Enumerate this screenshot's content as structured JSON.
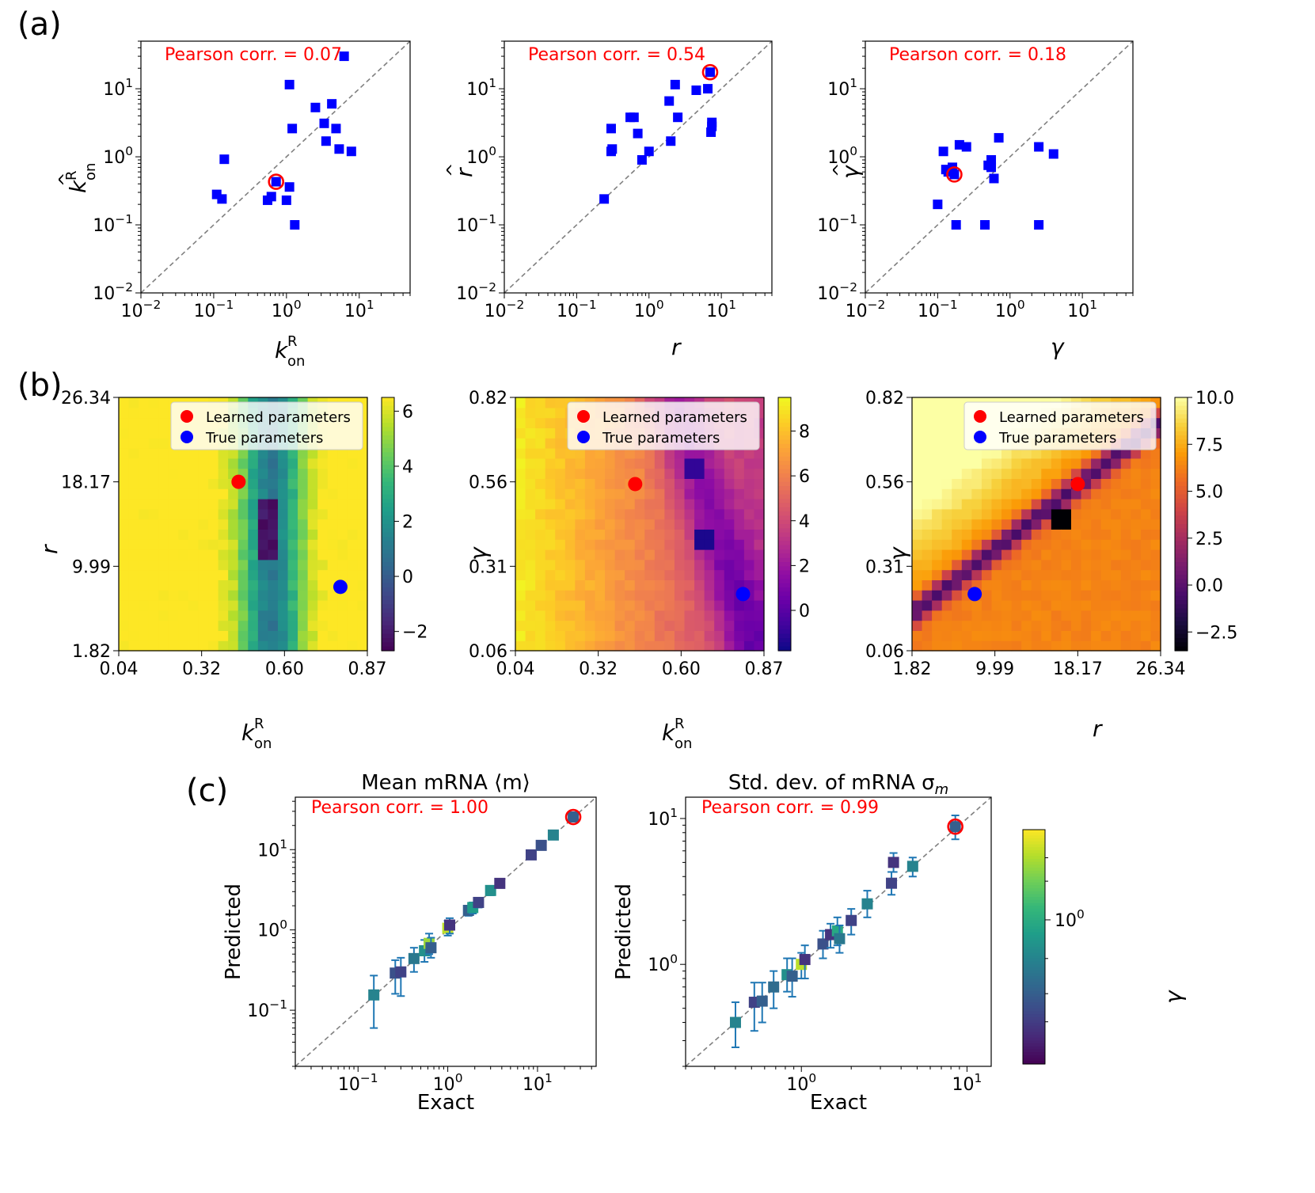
{
  "panel_labels": {
    "a": "(a)",
    "b": "(b)",
    "c": "(c)"
  },
  "colors": {
    "marker": "#0000ff",
    "highlight": "#ff0000",
    "annotation": "#ff0000",
    "diagonal": "#808080",
    "errorbar": "#1f77b4"
  },
  "legend": {
    "learned": "Learned parameters",
    "true": "True parameters"
  },
  "chart_data": [
    {
      "id": "a1",
      "type": "scatter",
      "panel": "(a)",
      "annotation": "Pearson corr. = 0.07",
      "xlabel": "k_on^R",
      "ylabel": "k̂_on^R",
      "xscale": "log",
      "yscale": "log",
      "xlim": [
        0.01,
        50
      ],
      "ylim": [
        0.01,
        50
      ],
      "xticks": [
        "10^-2",
        "10^-1",
        "10^0",
        "10^1"
      ],
      "yticks": [
        "10^-2",
        "10^-1",
        "10^0",
        "10^1"
      ],
      "marker_color": "#0000ff",
      "points": [
        [
          0.11,
          0.28
        ],
        [
          0.13,
          0.24
        ],
        [
          0.14,
          0.92
        ],
        [
          0.55,
          0.23
        ],
        [
          0.62,
          0.26
        ],
        [
          0.72,
          0.43
        ],
        [
          1.0,
          0.23
        ],
        [
          1.1,
          0.36
        ],
        [
          1.3,
          0.1
        ],
        [
          1.1,
          11.5
        ],
        [
          1.2,
          2.6
        ],
        [
          2.5,
          5.3
        ],
        [
          3.3,
          3.1
        ],
        [
          3.5,
          1.7
        ],
        [
          4.2,
          6.0
        ],
        [
          4.8,
          2.6
        ],
        [
          5.3,
          1.3
        ],
        [
          6.2,
          30.0
        ],
        [
          7.8,
          1.2
        ]
      ],
      "highlight": [
        0.72,
        0.43
      ],
      "diagonal": true
    },
    {
      "id": "a2",
      "type": "scatter",
      "panel": "(a)",
      "annotation": "Pearson corr. = 0.54",
      "xlabel": "r",
      "ylabel": "r̂",
      "xscale": "log",
      "yscale": "log",
      "xlim": [
        0.01,
        50
      ],
      "ylim": [
        0.01,
        50
      ],
      "xticks": [
        "10^-2",
        "10^-1",
        "10^0",
        "10^1"
      ],
      "yticks": [
        "10^-2",
        "10^-1",
        "10^0",
        "10^1"
      ],
      "marker_color": "#0000ff",
      "points": [
        [
          0.24,
          0.24
        ],
        [
          0.3,
          2.6
        ],
        [
          0.3,
          1.2
        ],
        [
          0.31,
          1.3
        ],
        [
          0.55,
          3.8
        ],
        [
          0.62,
          3.8
        ],
        [
          0.7,
          2.2
        ],
        [
          0.8,
          0.9
        ],
        [
          1.0,
          1.2
        ],
        [
          1.9,
          6.6
        ],
        [
          2.0,
          1.7
        ],
        [
          2.3,
          11.5
        ],
        [
          2.5,
          3.8
        ],
        [
          4.5,
          9.5
        ],
        [
          6.5,
          10.0
        ],
        [
          7.0,
          17.5
        ],
        [
          7.2,
          2.3
        ],
        [
          7.4,
          3.2
        ],
        [
          7.4,
          2.8
        ]
      ],
      "highlight": [
        7.0,
        17.5
      ],
      "diagonal": true
    },
    {
      "id": "a3",
      "type": "scatter",
      "panel": "(a)",
      "annotation": "Pearson corr. = 0.18",
      "xlabel": "γ",
      "ylabel": "γ̂",
      "xscale": "log",
      "yscale": "log",
      "xlim": [
        0.01,
        50
      ],
      "ylim": [
        0.01,
        50
      ],
      "xticks": [
        "10^-2",
        "10^-1",
        "10^0",
        "10^1"
      ],
      "yticks": [
        "10^-2",
        "10^-1",
        "10^0",
        "10^1"
      ],
      "marker_color": "#0000ff",
      "points": [
        [
          0.1,
          0.2
        ],
        [
          0.12,
          1.2
        ],
        [
          0.13,
          0.65
        ],
        [
          0.14,
          0.6
        ],
        [
          0.16,
          0.7
        ],
        [
          0.17,
          0.55
        ],
        [
          0.18,
          0.1
        ],
        [
          0.2,
          1.5
        ],
        [
          0.25,
          1.4
        ],
        [
          0.45,
          0.1
        ],
        [
          0.5,
          0.75
        ],
        [
          0.55,
          0.7
        ],
        [
          0.55,
          0.9
        ],
        [
          0.6,
          0.48
        ],
        [
          0.7,
          1.9
        ],
        [
          2.5,
          1.4
        ],
        [
          2.5,
          0.1
        ],
        [
          4.0,
          1.1
        ]
      ],
      "highlight": [
        0.17,
        0.55
      ],
      "diagonal": true
    },
    {
      "id": "b1",
      "type": "heatmap",
      "panel": "(b)",
      "xlabel": "k_on^R",
      "ylabel": "r",
      "xticks": [
        "0.04",
        "0.32",
        "0.60",
        "0.87"
      ],
      "yticks": [
        "1.82",
        "9.99",
        "18.17",
        "26.34"
      ],
      "xrange": [
        0.04,
        0.87
      ],
      "yrange": [
        1.82,
        26.34
      ],
      "colormap": "viridis",
      "clim": [
        -2.7,
        6.5
      ],
      "colorbar_ticks": [
        "6",
        "4",
        "2",
        "0",
        "−2"
      ],
      "colorbar_values": [
        6,
        4,
        2,
        0,
        -2
      ],
      "valley": {
        "type": "column",
        "xcenter": 0.55,
        "width": 0.1,
        "min_at": [
          0.55,
          14.0
        ]
      },
      "learned": [
        0.44,
        18.17
      ],
      "true": [
        0.78,
        8.0
      ]
    },
    {
      "id": "b2",
      "type": "heatmap",
      "panel": "(b)",
      "xlabel": "k_on^R",
      "ylabel": "γ",
      "xticks": [
        "0.04",
        "0.32",
        "0.60",
        "0.87"
      ],
      "yticks": [
        "0.06",
        "0.31",
        "0.56",
        "0.82"
      ],
      "xrange": [
        0.04,
        0.87
      ],
      "yrange": [
        0.06,
        0.82
      ],
      "colormap": "plasma",
      "clim": [
        -1.8,
        9.5
      ],
      "colorbar_ticks": [
        "8",
        "6",
        "4",
        "2",
        "0"
      ],
      "colorbar_values": [
        8,
        6,
        4,
        2,
        0
      ],
      "valley": {
        "type": "curve",
        "from": [
          0.57,
          0.82
        ],
        "to": [
          0.82,
          0.2
        ],
        "min_at": [
          0.68,
          0.4
        ]
      },
      "learned": [
        0.44,
        0.56
      ],
      "true": [
        0.8,
        0.23
      ]
    },
    {
      "id": "b3",
      "type": "heatmap",
      "panel": "(b)",
      "xlabel": "r",
      "ylabel": "γ",
      "xticks": [
        "1.82",
        "9.99",
        "18.17",
        "26.34"
      ],
      "yticks": [
        "0.06",
        "0.31",
        "0.56",
        "0.82"
      ],
      "xrange": [
        1.82,
        26.34
      ],
      "yrange": [
        0.06,
        0.82
      ],
      "colormap": "inferno",
      "clim": [
        -3.5,
        10.0
      ],
      "colorbar_ticks": [
        "10.0",
        "7.5",
        "5.0",
        "2.5",
        "0.0",
        "−2.5"
      ],
      "colorbar_values": [
        10.0,
        7.5,
        5.0,
        2.5,
        0.0,
        -2.5
      ],
      "valley": {
        "type": "line",
        "from": [
          1.82,
          0.17
        ],
        "to": [
          26.34,
          0.75
        ],
        "min_at": [
          16.5,
          0.46
        ]
      },
      "learned": [
        18.17,
        0.56
      ],
      "true": [
        8.0,
        0.23
      ]
    },
    {
      "id": "c1",
      "type": "scatter",
      "panel": "(c)",
      "title": "Mean mRNA ⟨m⟩",
      "annotation": "Pearson corr. = 1.00",
      "xlabel": "Exact",
      "ylabel": "Predicted",
      "xscale": "log",
      "yscale": "log",
      "xlim": [
        0.02,
        45
      ],
      "ylim": [
        0.02,
        45
      ],
      "xticks": [
        "10^-1",
        "10^0",
        "10^1"
      ],
      "yticks": [
        "10^-1",
        "10^0",
        "10^1"
      ],
      "colorbar_label": "γ",
      "colorbar_tick": "10^0",
      "points": [
        {
          "x": 0.15,
          "y": 0.155,
          "lo": 0.06,
          "hi": 0.27,
          "c": 0.45
        },
        {
          "x": 0.26,
          "y": 0.29,
          "lo": 0.16,
          "hi": 0.42,
          "c": 0.25
        },
        {
          "x": 0.3,
          "y": 0.3,
          "lo": 0.15,
          "hi": 0.45,
          "c": 0.2
        },
        {
          "x": 0.42,
          "y": 0.44,
          "lo": 0.3,
          "hi": 0.6,
          "c": 0.4
        },
        {
          "x": 0.55,
          "y": 0.55,
          "lo": 0.4,
          "hi": 0.75,
          "c": 0.5
        },
        {
          "x": 0.62,
          "y": 0.68,
          "lo": 0.5,
          "hi": 0.9,
          "c": 0.85
        },
        {
          "x": 0.65,
          "y": 0.6,
          "lo": 0.45,
          "hi": 0.8,
          "c": 0.3
        },
        {
          "x": 1.0,
          "y": 1.05,
          "lo": 0.85,
          "hi": 1.3,
          "c": 0.9
        },
        {
          "x": 1.05,
          "y": 1.15,
          "lo": 0.9,
          "hi": 1.4,
          "c": 0.15
        },
        {
          "x": 1.7,
          "y": 1.75,
          "lo": 1.5,
          "hi": 2.0,
          "c": 0.3
        },
        {
          "x": 1.9,
          "y": 1.9,
          "lo": 1.6,
          "hi": 2.2,
          "c": 0.55
        },
        {
          "x": 2.2,
          "y": 2.2,
          "lo": 1.9,
          "hi": 2.5,
          "c": 0.2
        },
        {
          "x": 3.0,
          "y": 3.1,
          "lo": 2.7,
          "hi": 3.5,
          "c": 0.5
        },
        {
          "x": 3.8,
          "y": 3.8,
          "lo": 3.4,
          "hi": 4.2,
          "c": 0.15
        },
        {
          "x": 8.5,
          "y": 8.6,
          "lo": 7.8,
          "hi": 9.5,
          "c": 0.2
        },
        {
          "x": 11.0,
          "y": 11.3,
          "lo": 10.2,
          "hi": 12.3,
          "c": 0.25
        },
        {
          "x": 15.0,
          "y": 15.2,
          "lo": 14.0,
          "hi": 16.5,
          "c": 0.45
        },
        {
          "x": 25.0,
          "y": 25.5,
          "lo": 23.5,
          "hi": 27.5,
          "c": 0.3
        }
      ],
      "highlight": [
        25.0,
        25.5
      ],
      "diagonal": true
    },
    {
      "id": "c2",
      "type": "scatter",
      "panel": "(c)",
      "title": "Std. dev. of mRNA σ_m",
      "annotation": "Pearson corr. = 0.99",
      "xlabel": "Exact",
      "ylabel": "Predicted",
      "xscale": "log",
      "yscale": "log",
      "xlim": [
        0.2,
        14
      ],
      "ylim": [
        0.2,
        14
      ],
      "xticks": [
        "10^0",
        "10^1"
      ],
      "yticks": [
        "10^0",
        "10^1"
      ],
      "points": [
        {
          "x": 0.4,
          "y": 0.4,
          "lo": 0.27,
          "hi": 0.55,
          "c": 0.45
        },
        {
          "x": 0.52,
          "y": 0.55,
          "lo": 0.35,
          "hi": 0.75,
          "c": 0.2
        },
        {
          "x": 0.58,
          "y": 0.56,
          "lo": 0.4,
          "hi": 0.75,
          "c": 0.3
        },
        {
          "x": 0.68,
          "y": 0.7,
          "lo": 0.5,
          "hi": 0.9,
          "c": 0.35
        },
        {
          "x": 0.82,
          "y": 0.85,
          "lo": 0.65,
          "hi": 1.1,
          "c": 0.5
        },
        {
          "x": 0.88,
          "y": 0.83,
          "lo": 0.6,
          "hi": 1.1,
          "c": 0.3
        },
        {
          "x": 1.0,
          "y": 1.0,
          "lo": 0.8,
          "hi": 1.2,
          "c": 0.9
        },
        {
          "x": 1.05,
          "y": 1.08,
          "lo": 0.8,
          "hi": 1.35,
          "c": 0.15
        },
        {
          "x": 1.35,
          "y": 1.38,
          "lo": 1.1,
          "hi": 1.7,
          "c": 0.25
        },
        {
          "x": 1.5,
          "y": 1.6,
          "lo": 1.3,
          "hi": 1.9,
          "c": 0.15
        },
        {
          "x": 1.65,
          "y": 1.7,
          "lo": 1.35,
          "hi": 2.1,
          "c": 0.6
        },
        {
          "x": 1.7,
          "y": 1.5,
          "lo": 1.2,
          "hi": 1.85,
          "c": 0.4
        },
        {
          "x": 2.0,
          "y": 2.0,
          "lo": 1.6,
          "hi": 2.4,
          "c": 0.2
        },
        {
          "x": 2.5,
          "y": 2.6,
          "lo": 2.1,
          "hi": 3.2,
          "c": 0.45
        },
        {
          "x": 3.5,
          "y": 3.6,
          "lo": 3.0,
          "hi": 4.3,
          "c": 0.2
        },
        {
          "x": 3.6,
          "y": 5.0,
          "lo": 4.3,
          "hi": 5.8,
          "c": 0.15
        },
        {
          "x": 4.7,
          "y": 4.7,
          "lo": 4.0,
          "hi": 5.4,
          "c": 0.45
        },
        {
          "x": 8.5,
          "y": 8.8,
          "lo": 7.2,
          "hi": 10.5,
          "c": 0.3
        }
      ],
      "highlight": [
        8.5,
        8.8
      ],
      "diagonal": true
    }
  ]
}
